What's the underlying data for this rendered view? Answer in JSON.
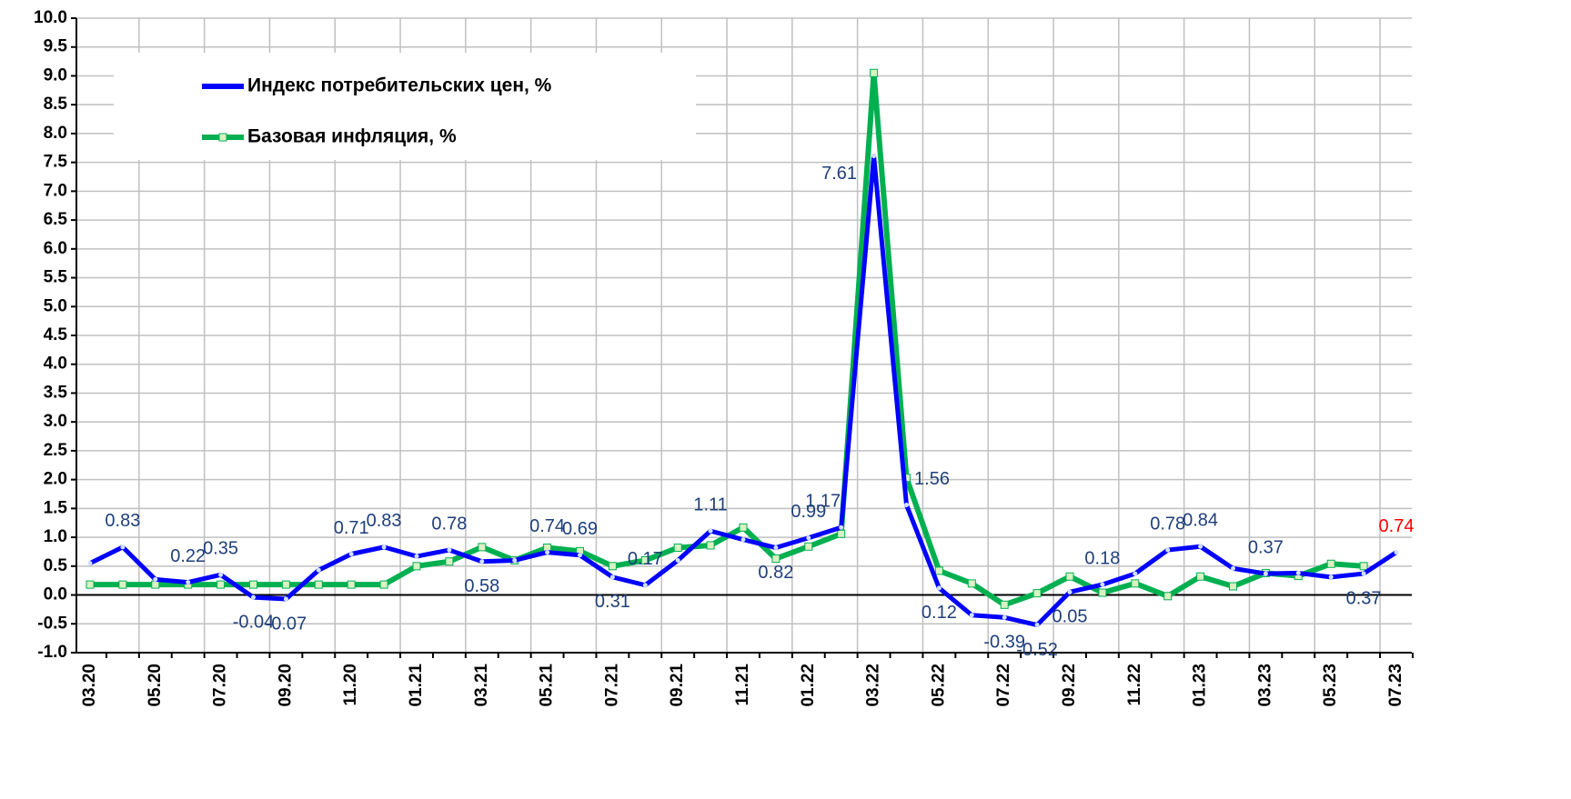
{
  "chart_data": {
    "type": "line",
    "categories": [
      "03.20",
      null,
      "05.20",
      null,
      "07.20",
      null,
      "09.20",
      null,
      "11.20",
      null,
      "01.21",
      null,
      "03.21",
      null,
      "05.21",
      null,
      "07.21",
      null,
      "09.21",
      null,
      "11.21",
      null,
      "01.22",
      null,
      "03.22",
      null,
      "05.22",
      null,
      "07.22",
      null,
      "09.22",
      null,
      "11.22",
      null,
      "01.23",
      null,
      "03.23",
      null,
      "05.23",
      null,
      "07.23"
    ],
    "series": [
      {
        "name": "Индекс потребительских цен, %",
        "color": "#0000ff",
        "label_color": "#1f3f7a",
        "values": [
          0.55,
          0.83,
          0.27,
          0.22,
          0.35,
          -0.04,
          -0.07,
          0.43,
          0.71,
          0.83,
          0.67,
          0.78,
          0.58,
          0.6,
          0.74,
          0.69,
          0.31,
          0.17,
          0.6,
          1.11,
          0.96,
          0.82,
          0.99,
          1.17,
          7.61,
          1.56,
          0.12,
          -0.35,
          -0.39,
          -0.52,
          0.05,
          0.18,
          0.37,
          0.78,
          0.84,
          0.46,
          0.37,
          0.38,
          0.31,
          0.37,
          0.74
        ],
        "value_labels": [
          null,
          "0.83",
          null,
          "0.22",
          "0.35",
          "-0.04",
          "-0.07",
          null,
          "0.71",
          "0.83",
          null,
          "0.78",
          "0.58",
          null,
          "0.74",
          "0.69",
          "0.31",
          "0.17",
          null,
          "1.11",
          null,
          "0.82",
          "0.99",
          "1.17",
          "7.61",
          "1.56",
          "0.12",
          null,
          "-0.39",
          "-0.52",
          "0.05",
          "0.18",
          null,
          "0.78",
          "0.84",
          null,
          "0.37",
          null,
          null,
          "0.37",
          "0.74"
        ],
        "highlight_color": "#ff0000"
      },
      {
        "name": "Базовая инфляция, %",
        "color": "#00b050",
        "values": [
          0.18,
          0.18,
          0.18,
          0.18,
          0.18,
          0.18,
          0.18,
          0.18,
          0.18,
          0.18,
          0.5,
          0.58,
          0.83,
          0.6,
          0.82,
          0.76,
          0.5,
          0.6,
          0.82,
          0.86,
          1.17,
          0.63,
          0.84,
          1.06,
          9.05,
          2.03,
          0.42,
          0.2,
          -0.17,
          0.03,
          0.32,
          0.04,
          0.2,
          -0.02,
          0.32,
          0.15,
          0.38,
          0.33,
          0.54,
          0.5,
          null
        ]
      }
    ],
    "ylim": [
      -1,
      10
    ],
    "yticks": [
      {
        "value": -1,
        "label": "-1.0"
      },
      -0.5,
      {
        "value": 0,
        "label": "0.0"
      },
      0.5,
      {
        "value": 1,
        "label": "1.0"
      },
      1.5,
      {
        "value": 2,
        "label": "2.0"
      },
      2.5,
      {
        "value": 3,
        "label": "3.0"
      },
      3.5,
      {
        "value": 4,
        "label": "4.0"
      },
      4.5,
      {
        "value": 5,
        "label": "5.0"
      },
      5.5,
      {
        "value": 6,
        "label": "6.0"
      },
      6.5,
      {
        "value": 7,
        "label": "7.0"
      },
      7.5,
      {
        "value": 8,
        "label": "8.0"
      },
      8.5,
      {
        "value": 9,
        "label": "9.0"
      },
      9.5,
      {
        "value": 10,
        "label": "10.0"
      }
    ],
    "grid": true
  }
}
